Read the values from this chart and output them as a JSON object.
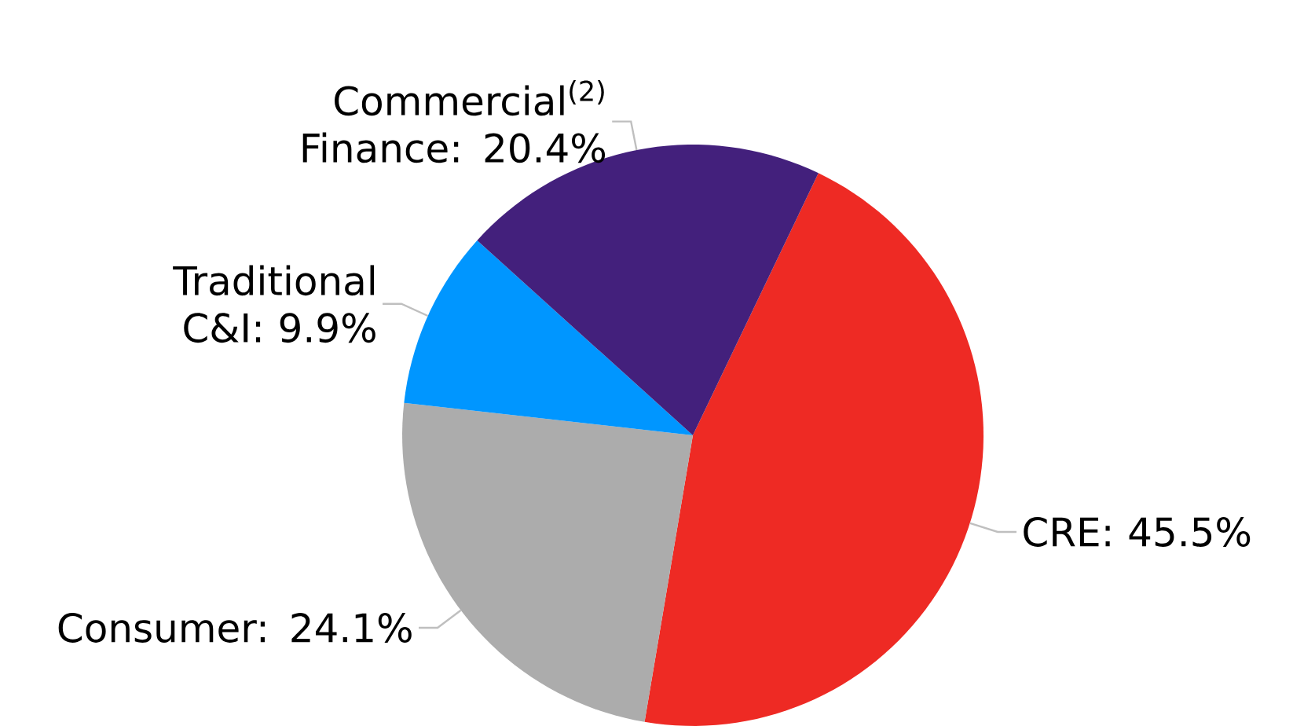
{
  "chart_data": {
    "type": "pie",
    "categories": [
      "CRE: 45.5%",
      "Consumer: 24.1%",
      "Traditional C&I: 9.9%",
      "Commercial$^{(2)}$ Finance: 20.4%"
    ],
    "values": [
      45.5,
      24.1,
      9.9,
      20.4
    ],
    "colors": [
      "#ee2a24",
      "#acacac",
      "#0096ff",
      "#43207c"
    ]
  }
}
